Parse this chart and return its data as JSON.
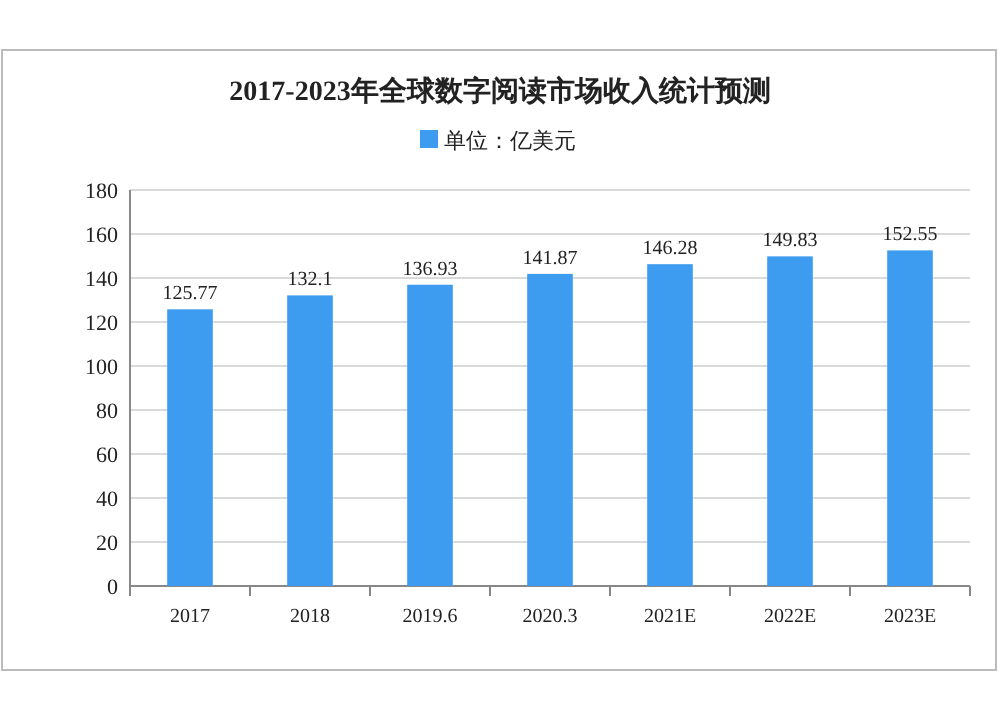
{
  "chart_data": {
    "type": "bar",
    "title": "2017-2023年全球数字阅读市场收入统计预测",
    "categories": [
      "2017",
      "2018",
      "2019.6",
      "2020.3",
      "2021E",
      "2022E",
      "2023E"
    ],
    "series": [
      {
        "name": "单位：亿美元",
        "color": "#3d9cf0",
        "values": [
          125.77,
          132.1,
          136.93,
          141.87,
          146.28,
          149.83,
          152.55
        ]
      }
    ],
    "ylim": [
      0,
      180
    ],
    "yticks": [
      0,
      20,
      40,
      60,
      80,
      100,
      120,
      140,
      160,
      180
    ],
    "grid": "y",
    "legend": "top",
    "data_labels": true
  }
}
